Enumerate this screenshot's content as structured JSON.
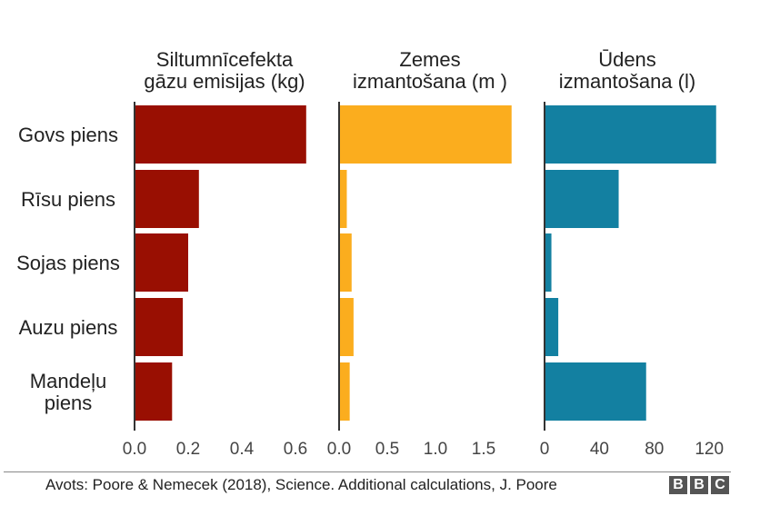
{
  "chart_data": [
    {
      "type": "bar",
      "orientation": "horizontal",
      "title": "Siltumnīcefekta gāzu emisijas (kg)",
      "title_lines": [
        "Siltumnīcefekta",
        "gāzu emisijas (kg)"
      ],
      "color": "#990f02",
      "categories": [
        "Govs piens",
        "Rīsu piens",
        "Sojas piens",
        "Auzu piens",
        "Mandeļu piens"
      ],
      "values": [
        0.64,
        0.24,
        0.2,
        0.18,
        0.14
      ],
      "xlim": [
        0,
        0.65
      ],
      "ticks": [
        "0.0",
        "0.2",
        "0.4",
        "0.6"
      ],
      "tick_values": [
        0,
        0.2,
        0.4,
        0.6
      ]
    },
    {
      "type": "bar",
      "orientation": "horizontal",
      "title": "Zemes izmantošana (m )",
      "title_lines": [
        "Zemes",
        "izmantošana (m )"
      ],
      "color": "#fbad1e",
      "categories": [
        "Govs piens",
        "Rīsu piens",
        "Sojas piens",
        "Auzu piens",
        "Mandeļu piens"
      ],
      "values": [
        1.79,
        0.08,
        0.13,
        0.15,
        0.11
      ],
      "xlim": [
        0,
        1.85
      ],
      "ticks": [
        "0.0",
        "0.5",
        "1.0",
        "1.5"
      ],
      "tick_values": [
        0,
        0.5,
        1.0,
        1.5
      ]
    },
    {
      "type": "bar",
      "orientation": "horizontal",
      "title": "Ūdens izmantošana (l)",
      "title_lines": [
        "Ūdens",
        "izmantošana (l)"
      ],
      "color": "#1380a1",
      "categories": [
        "Govs piens",
        "Rīsu piens",
        "Sojas piens",
        "Auzu piens",
        "Mandeļu piens"
      ],
      "values": [
        125,
        54,
        5,
        10,
        74
      ],
      "xlim": [
        0,
        130
      ],
      "ticks": [
        "0",
        "40",
        "80",
        "120"
      ],
      "tick_values": [
        0,
        40,
        80,
        120
      ]
    }
  ],
  "row_labels": [
    [
      "Govs piens"
    ],
    [
      "Rīsu piens"
    ],
    [
      "Sojas piens"
    ],
    [
      "Auzu piens"
    ],
    [
      "Mandeļu",
      "piens"
    ]
  ],
  "source": "Avots: Poore & Nemecek (2018), Science. Additional calculations, J. Poore",
  "logo": [
    "B",
    "B",
    "C"
  ]
}
